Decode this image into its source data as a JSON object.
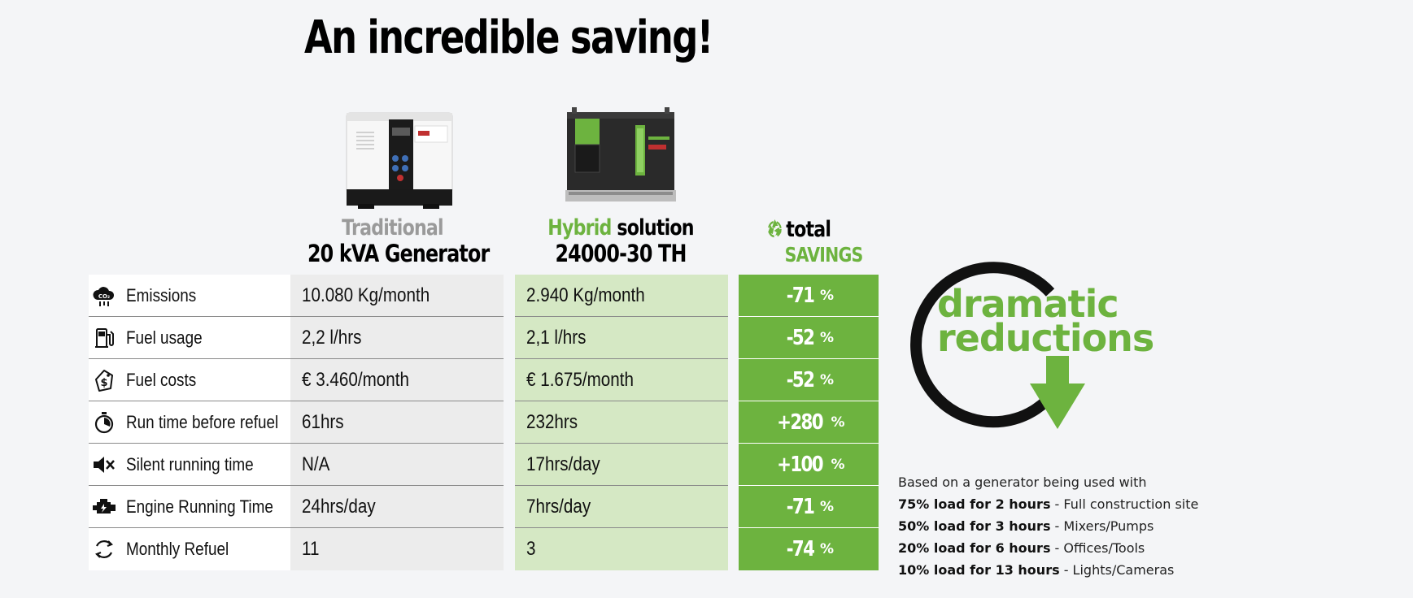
{
  "title": "An incredible saving!",
  "columns": {
    "traditional": {
      "line1": "Traditional",
      "line2": "20 kVA Generator"
    },
    "hybrid": {
      "line1_green": "Hybrid",
      "line1_black": " solution",
      "line2": "24000-30 TH"
    },
    "savings": {
      "line1": "total",
      "line2": "SAVINGS"
    }
  },
  "rows": [
    {
      "icon": "co2-cloud-icon",
      "label": "Emissions",
      "traditional": "10.080 Kg/month",
      "hybrid": "2.940 Kg/month",
      "saving": "-71",
      "unit": "%"
    },
    {
      "icon": "fuel-pump-icon",
      "label": "Fuel usage",
      "traditional": "2,2 l/hrs",
      "hybrid": "2,1 l/hrs",
      "saving": "-52",
      "unit": "%"
    },
    {
      "icon": "money-tag-icon",
      "label": "Fuel costs",
      "traditional": "€ 3.460/month",
      "hybrid": "€ 1.675/month",
      "saving": "-52",
      "unit": "%"
    },
    {
      "icon": "stopwatch-icon",
      "label": "Run time before refuel",
      "traditional": "61hrs",
      "hybrid": "232hrs",
      "saving": "+280",
      "unit": "%"
    },
    {
      "icon": "speaker-mute-icon",
      "label": "Silent running time",
      "traditional": "N/A",
      "hybrid": "17hrs/day",
      "saving": "+100",
      "unit": "%"
    },
    {
      "icon": "engine-icon",
      "label": "Engine Running Time",
      "traditional": "24hrs/day",
      "hybrid": "7hrs/day",
      "saving": "-71",
      "unit": "%"
    },
    {
      "icon": "refresh-icon",
      "label": "Monthly Refuel",
      "traditional": "11",
      "hybrid": "3",
      "saving": "-74",
      "unit": "%"
    }
  ],
  "dramatic": {
    "line1": "dramatic",
    "line2": "reductions"
  },
  "note": {
    "intro": "Based on a generator being used with",
    "items": [
      {
        "bold": "75% load for 2 hours",
        "rest": " - Full construction site"
      },
      {
        "bold": "50% load for 3 hours",
        "rest": " - Mixers/Pumps"
      },
      {
        "bold": "20% load for 6 hours",
        "rest": " - Offices/Tools"
      },
      {
        "bold": "10% load for 13 hours",
        "rest": " - Lights/Cameras"
      }
    ]
  },
  "colors": {
    "green": "#6db33f",
    "light_green": "#d5e8c4",
    "grey": "#ececec"
  }
}
